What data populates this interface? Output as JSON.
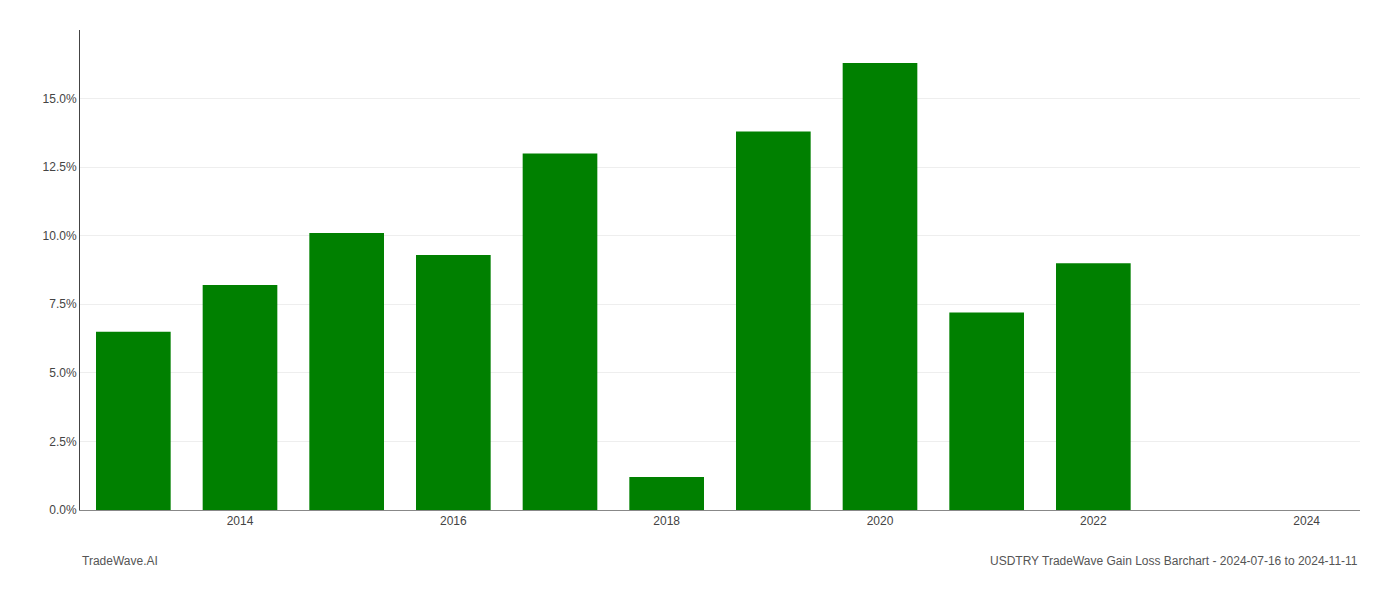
{
  "chart_data": {
    "type": "bar",
    "x": [
      2013,
      2014,
      2015,
      2016,
      2017,
      2018,
      2019,
      2020,
      2021,
      2022,
      2023
    ],
    "values": [
      0.065,
      0.082,
      0.101,
      0.093,
      0.13,
      0.012,
      0.138,
      0.163,
      0.072,
      0.09,
      0.0
    ],
    "color": "#008000",
    "xlim": [
      2012.5,
      2024.5
    ],
    "xticks": [
      2014,
      2016,
      2018,
      2020,
      2022,
      2024
    ],
    "ylim": [
      0,
      0.175
    ],
    "yticks": [
      {
        "value": 0.0,
        "label": "0.0%"
      },
      {
        "value": 0.025,
        "label": "2.5%"
      },
      {
        "value": 0.05,
        "label": "5.0%"
      },
      {
        "value": 0.075,
        "label": "7.5%"
      },
      {
        "value": 0.1,
        "label": "10.0%"
      },
      {
        "value": 0.125,
        "label": "12.5%"
      },
      {
        "value": 0.15,
        "label": "15.0%"
      }
    ],
    "grid": true,
    "annotations": [
      "TradeWave.AI",
      "USDTRY TradeWave Gain Loss Barchart - 2024-07-16 to 2024-11-11"
    ]
  }
}
